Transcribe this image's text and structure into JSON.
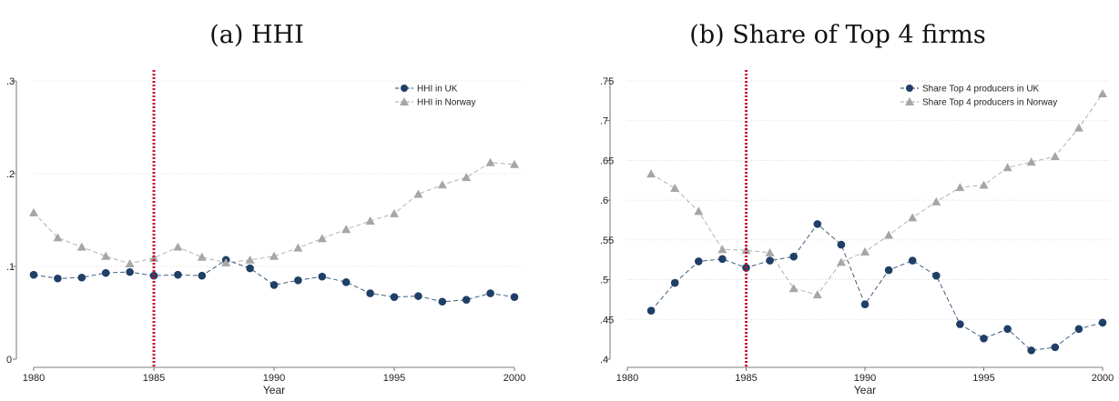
{
  "chart_data": [
    {
      "type": "line",
      "title": "(a) HHI",
      "xlabel": "Year",
      "ylabel": "",
      "xlim": [
        1980,
        2000
      ],
      "ylim": [
        0,
        0.3
      ],
      "xticks": [
        1980,
        1985,
        1990,
        1995,
        2000
      ],
      "yticks": [
        0,
        0.1,
        0.2,
        0.3
      ],
      "ytick_labels": [
        "0",
        ".1",
        ".2",
        ".3"
      ],
      "grid": "horizontal dotted",
      "legend_position": "top-right",
      "vline": {
        "x": 1985,
        "color": "#c8102e",
        "style": "dotted"
      },
      "series": [
        {
          "name": "HHI in UK",
          "marker": "circle",
          "color": "#1f3f66",
          "x": [
            1980,
            1981,
            1982,
            1983,
            1984,
            1985,
            1986,
            1987,
            1988,
            1989,
            1990,
            1991,
            1992,
            1993,
            1994,
            1995,
            1996,
            1997,
            1998,
            1999,
            2000
          ],
          "values": [
            0.091,
            0.087,
            0.088,
            0.093,
            0.094,
            0.09,
            0.091,
            0.09,
            0.107,
            0.098,
            0.08,
            0.085,
            0.089,
            0.083,
            0.071,
            0.067,
            0.068,
            0.062,
            0.064,
            0.071,
            0.067
          ]
        },
        {
          "name": "HHI in Norway",
          "marker": "triangle",
          "color": "#a6a6a6",
          "x": [
            1980,
            1981,
            1982,
            1983,
            1984,
            1985,
            1986,
            1987,
            1988,
            1989,
            1990,
            1991,
            1992,
            1993,
            1994,
            1995,
            1996,
            1997,
            1998,
            1999,
            2000
          ],
          "values": [
            0.158,
            0.131,
            0.121,
            0.111,
            0.103,
            0.109,
            0.121,
            0.11,
            0.104,
            0.107,
            0.111,
            0.12,
            0.13,
            0.14,
            0.149,
            0.157,
            0.178,
            0.188,
            0.196,
            0.212,
            0.21
          ]
        }
      ]
    },
    {
      "type": "line",
      "title": "(b) Share of Top 4 firms",
      "xlabel": "Year",
      "ylabel": "",
      "xlim": [
        1980,
        2000
      ],
      "ylim": [
        0.4,
        0.75
      ],
      "xticks": [
        1980,
        1985,
        1990,
        1995,
        2000
      ],
      "yticks": [
        0.4,
        0.45,
        0.5,
        0.55,
        0.6,
        0.65,
        0.7,
        0.75
      ],
      "ytick_labels": [
        ".4",
        ".45",
        ".5",
        ".55",
        ".6",
        ".65",
        ".7",
        ".75"
      ],
      "grid": "horizontal dotted",
      "legend_position": "top-right",
      "vline": {
        "x": 1985,
        "color": "#c8102e",
        "style": "dotted"
      },
      "series": [
        {
          "name": "Share Top 4 producers in UK",
          "marker": "circle",
          "color": "#1f3f66",
          "x": [
            1981,
            1982,
            1983,
            1984,
            1985,
            1986,
            1987,
            1988,
            1989,
            1990,
            1991,
            1992,
            1993,
            1994,
            1995,
            1996,
            1997,
            1998,
            1999,
            2000
          ],
          "values": [
            0.461,
            0.496,
            0.523,
            0.526,
            0.515,
            0.524,
            0.529,
            0.57,
            0.544,
            0.469,
            0.512,
            0.524,
            0.505,
            0.444,
            0.426,
            0.438,
            0.411,
            0.415,
            0.438,
            0.446
          ]
        },
        {
          "name": "Share Top 4 producers in Norway",
          "marker": "triangle",
          "color": "#a6a6a6",
          "x": [
            1981,
            1982,
            1983,
            1984,
            1985,
            1986,
            1987,
            1988,
            1989,
            1990,
            1991,
            1992,
            1993,
            1994,
            1995,
            1996,
            1997,
            1998,
            1999,
            2000
          ],
          "values": [
            0.633,
            0.615,
            0.586,
            0.538,
            0.537,
            0.534,
            0.489,
            0.481,
            0.522,
            0.535,
            0.556,
            0.578,
            0.598,
            0.616,
            0.619,
            0.641,
            0.648,
            0.655,
            0.691,
            0.734
          ]
        }
      ]
    }
  ]
}
